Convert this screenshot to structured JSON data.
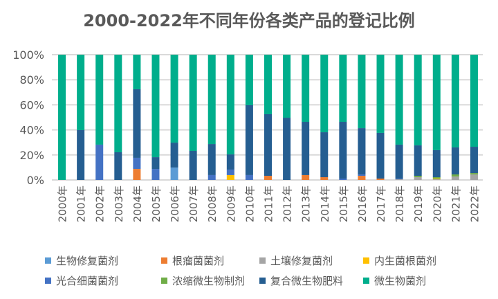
{
  "chart_data": {
    "type": "bar",
    "stacked": true,
    "title": "2000-2022年不同年份各类产品的登记比例",
    "ylim": [
      0,
      100
    ],
    "yticks": [
      "0%",
      "20%",
      "40%",
      "60%",
      "80%",
      "100%"
    ],
    "grid": true,
    "legend_position": "bottom",
    "categories": [
      "2000年",
      "2001年",
      "2002年",
      "2003年",
      "2004年",
      "2005年",
      "2006年",
      "2007年",
      "2008年",
      "2009年",
      "2010年",
      "2011年",
      "2012年",
      "2013年",
      "2014年",
      "2015年",
      "2016年",
      "2017年",
      "2018年",
      "2019年",
      "2020年",
      "2021年",
      "2022年"
    ],
    "series": [
      {
        "name": "生物修复菌剂",
        "color": "#5B9BD5",
        "values": [
          0,
          0,
          0,
          0,
          0,
          0,
          9.9,
          0,
          0,
          0,
          0,
          0,
          0,
          0,
          0,
          0,
          0,
          0,
          0,
          0,
          0,
          0,
          0
        ]
      },
      {
        "name": "根瘤菌菌剂",
        "color": "#ED7D31",
        "values": [
          0,
          0,
          0,
          0,
          8.8,
          0,
          0,
          0,
          0,
          0,
          0,
          3.3,
          0,
          3.9,
          2.2,
          0,
          3.3,
          1.1,
          0,
          0,
          0,
          0,
          0
        ]
      },
      {
        "name": "土壤修复菌剂",
        "color": "#A5A5A5",
        "values": [
          0,
          0,
          0,
          0,
          0,
          0,
          0,
          0,
          0,
          0,
          0,
          0,
          0,
          0,
          0,
          0,
          0,
          0,
          0.6,
          2.2,
          0.6,
          2.8,
          4.4
        ]
      },
      {
        "name": "内生菌根菌剂",
        "color": "#FFC000",
        "values": [
          0,
          0,
          0,
          0,
          0,
          0,
          0,
          0,
          0,
          3.9,
          0,
          0,
          0,
          0,
          0,
          0,
          0,
          0,
          0,
          0,
          0.5,
          0,
          0
        ]
      },
      {
        "name": "光合细菌菌剂",
        "color": "#4472C4",
        "values": [
          0,
          0,
          28.2,
          0,
          8.9,
          8.8,
          0,
          0,
          3.9,
          4.4,
          3.9,
          0,
          0,
          0,
          0,
          1.1,
          1.1,
          0,
          0.5,
          0,
          0,
          0,
          0
        ]
      },
      {
        "name": "浓缩微生物制剂",
        "color": "#70AD47",
        "values": [
          0,
          0,
          0,
          0,
          0,
          0,
          0,
          0,
          0,
          0,
          0,
          0,
          0,
          0,
          0,
          0,
          0,
          0,
          0,
          1.1,
          1.1,
          1.6,
          1.1
        ]
      },
      {
        "name": "复合微生物肥料",
        "color": "#255E91",
        "values": [
          0,
          39.8,
          0,
          22.1,
          54.7,
          9.4,
          19.9,
          23.2,
          24.8,
          12.1,
          55.8,
          49.2,
          49.7,
          42.5,
          35.9,
          45.3,
          37.0,
          36.5,
          27.1,
          24.3,
          21.6,
          21.6,
          21.0
        ]
      },
      {
        "name": "微生物菌剂",
        "color": "#00AE8C",
        "values": [
          100,
          60.2,
          71.8,
          77.9,
          27.6,
          81.8,
          70.2,
          76.8,
          71.3,
          79.6,
          40.3,
          47.5,
          50.3,
          53.6,
          61.9,
          53.6,
          58.6,
          62.4,
          71.8,
          72.4,
          76.2,
          74.0,
          73.5
        ]
      }
    ]
  }
}
